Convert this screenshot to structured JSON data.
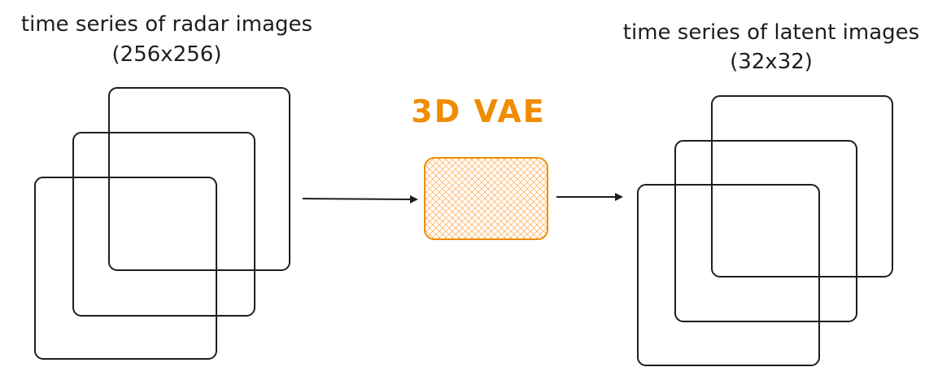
{
  "input": {
    "caption_line1": "time series of radar images",
    "caption_line2": "(256x256)",
    "frames": 3
  },
  "model": {
    "title": "3D VAE",
    "color": "#f08c00",
    "fill_color": "#ffd8a8"
  },
  "output": {
    "caption_line1": "time series of latent images",
    "caption_line2": "(32x32)",
    "frames": 3
  }
}
